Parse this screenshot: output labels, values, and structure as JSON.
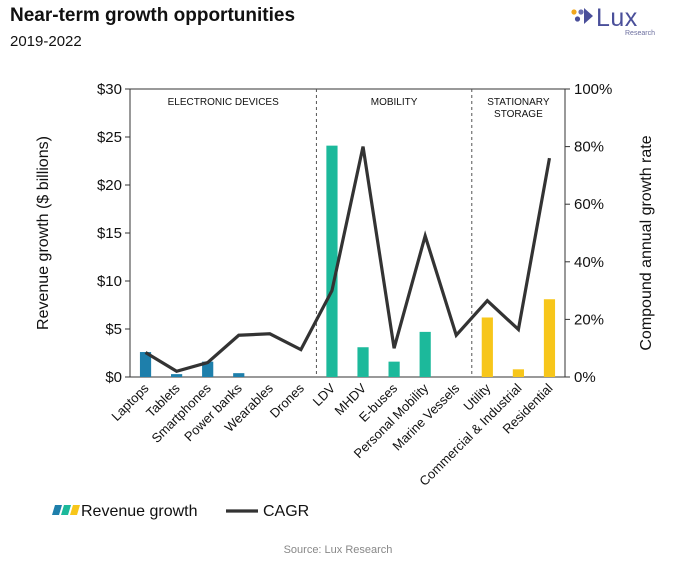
{
  "header": {
    "title": "Near-term growth opportunities",
    "subtitle": "2019-2022"
  },
  "logo": {
    "text": "Lux",
    "sub": "Research"
  },
  "source": "Source: Lux Research",
  "colors": {
    "electronic": "#1e7fab",
    "mobility": "#1cb99b",
    "stationary": "#f7c61a",
    "cagr": "#333333"
  },
  "chart_data": {
    "type": "bar+line",
    "categories": [
      "Laptops",
      "Tablets",
      "Smartphones",
      "Power banks",
      "Wearables",
      "Drones",
      "LDV",
      "MHDV",
      "E-buses",
      "Personal Mobility",
      "Marine Vessels",
      "Utility",
      "Commercial & Industrial",
      "Residential"
    ],
    "groups": [
      {
        "label": [
          "ELECTRONIC DEVICES"
        ],
        "start": 0,
        "end": 5,
        "color_key": "electronic"
      },
      {
        "label": [
          "MOBILITY"
        ],
        "start": 6,
        "end": 10,
        "color_key": "mobility"
      },
      {
        "label": [
          "STATIONARY",
          "STORAGE"
        ],
        "start": 11,
        "end": 13,
        "color_key": "stationary"
      }
    ],
    "series": [
      {
        "name": "Revenue growth",
        "type": "bar",
        "axis": "left",
        "values": [
          2.6,
          0.3,
          1.6,
          0.4,
          0,
          0,
          24.1,
          3.1,
          1.6,
          4.7,
          0,
          6.2,
          0.8,
          8.1
        ]
      },
      {
        "name": "CAGR",
        "type": "line",
        "axis": "right",
        "values": [
          8.5,
          2,
          5,
          14.5,
          15,
          9.5,
          30,
          80,
          10,
          49,
          14.5,
          26.5,
          16.5,
          76
        ]
      }
    ],
    "y_left": {
      "label": "Revenue growth ($ billions)",
      "min": 0,
      "max": 30,
      "ticks": [
        "$0",
        "$5",
        "$10",
        "$15",
        "$20",
        "$25",
        "$30"
      ]
    },
    "y_right": {
      "label": "Compound annual growth rate",
      "min": 0,
      "max": 100,
      "ticks": [
        "0%",
        "20%",
        "40%",
        "60%",
        "80%",
        "100%"
      ]
    },
    "legend": {
      "position": "bottom-left",
      "items": [
        "Revenue growth",
        "CAGR"
      ]
    }
  }
}
